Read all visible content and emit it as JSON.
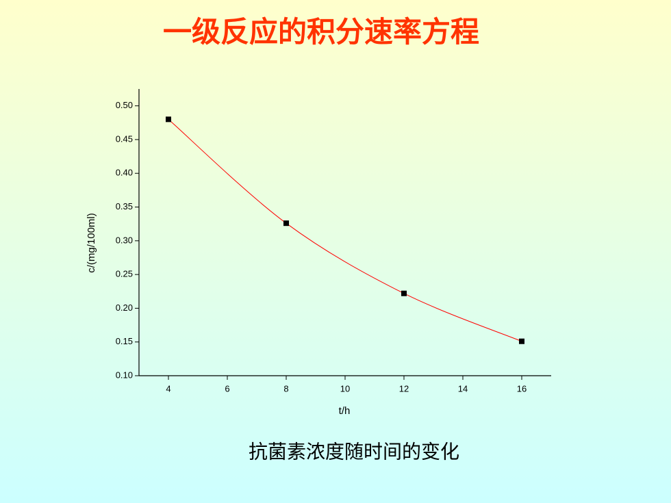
{
  "title": "一级反应的积分速率方程",
  "caption": "抗菌素浓度随时间的变化",
  "chart_data": {
    "type": "scatter",
    "x_label": "t/h",
    "y_label": "c/(mg/100ml)",
    "x": [
      4,
      8,
      12,
      16
    ],
    "values": [
      0.48,
      0.326,
      0.222,
      0.151
    ],
    "marker_color": "#000000",
    "line_color": "#ff0000",
    "smooth": true,
    "xlim": [
      3,
      17
    ],
    "xticks": [
      4,
      6,
      8,
      10,
      12,
      14,
      16
    ],
    "ylim": [
      0.1,
      0.525
    ],
    "yticks": [
      {
        "value": 0.1,
        "label": "0.10"
      },
      {
        "value": 0.15,
        "label": "0.15"
      },
      {
        "value": 0.2,
        "label": "0.20"
      },
      {
        "value": 0.25,
        "label": "0.25"
      },
      {
        "value": 0.3,
        "label": "0.30"
      },
      {
        "value": 0.35,
        "label": "0.35"
      },
      {
        "value": 0.4,
        "label": "0.40"
      },
      {
        "value": 0.45,
        "label": "0.45"
      },
      {
        "value": 0.5,
        "label": "0.50"
      }
    ]
  }
}
